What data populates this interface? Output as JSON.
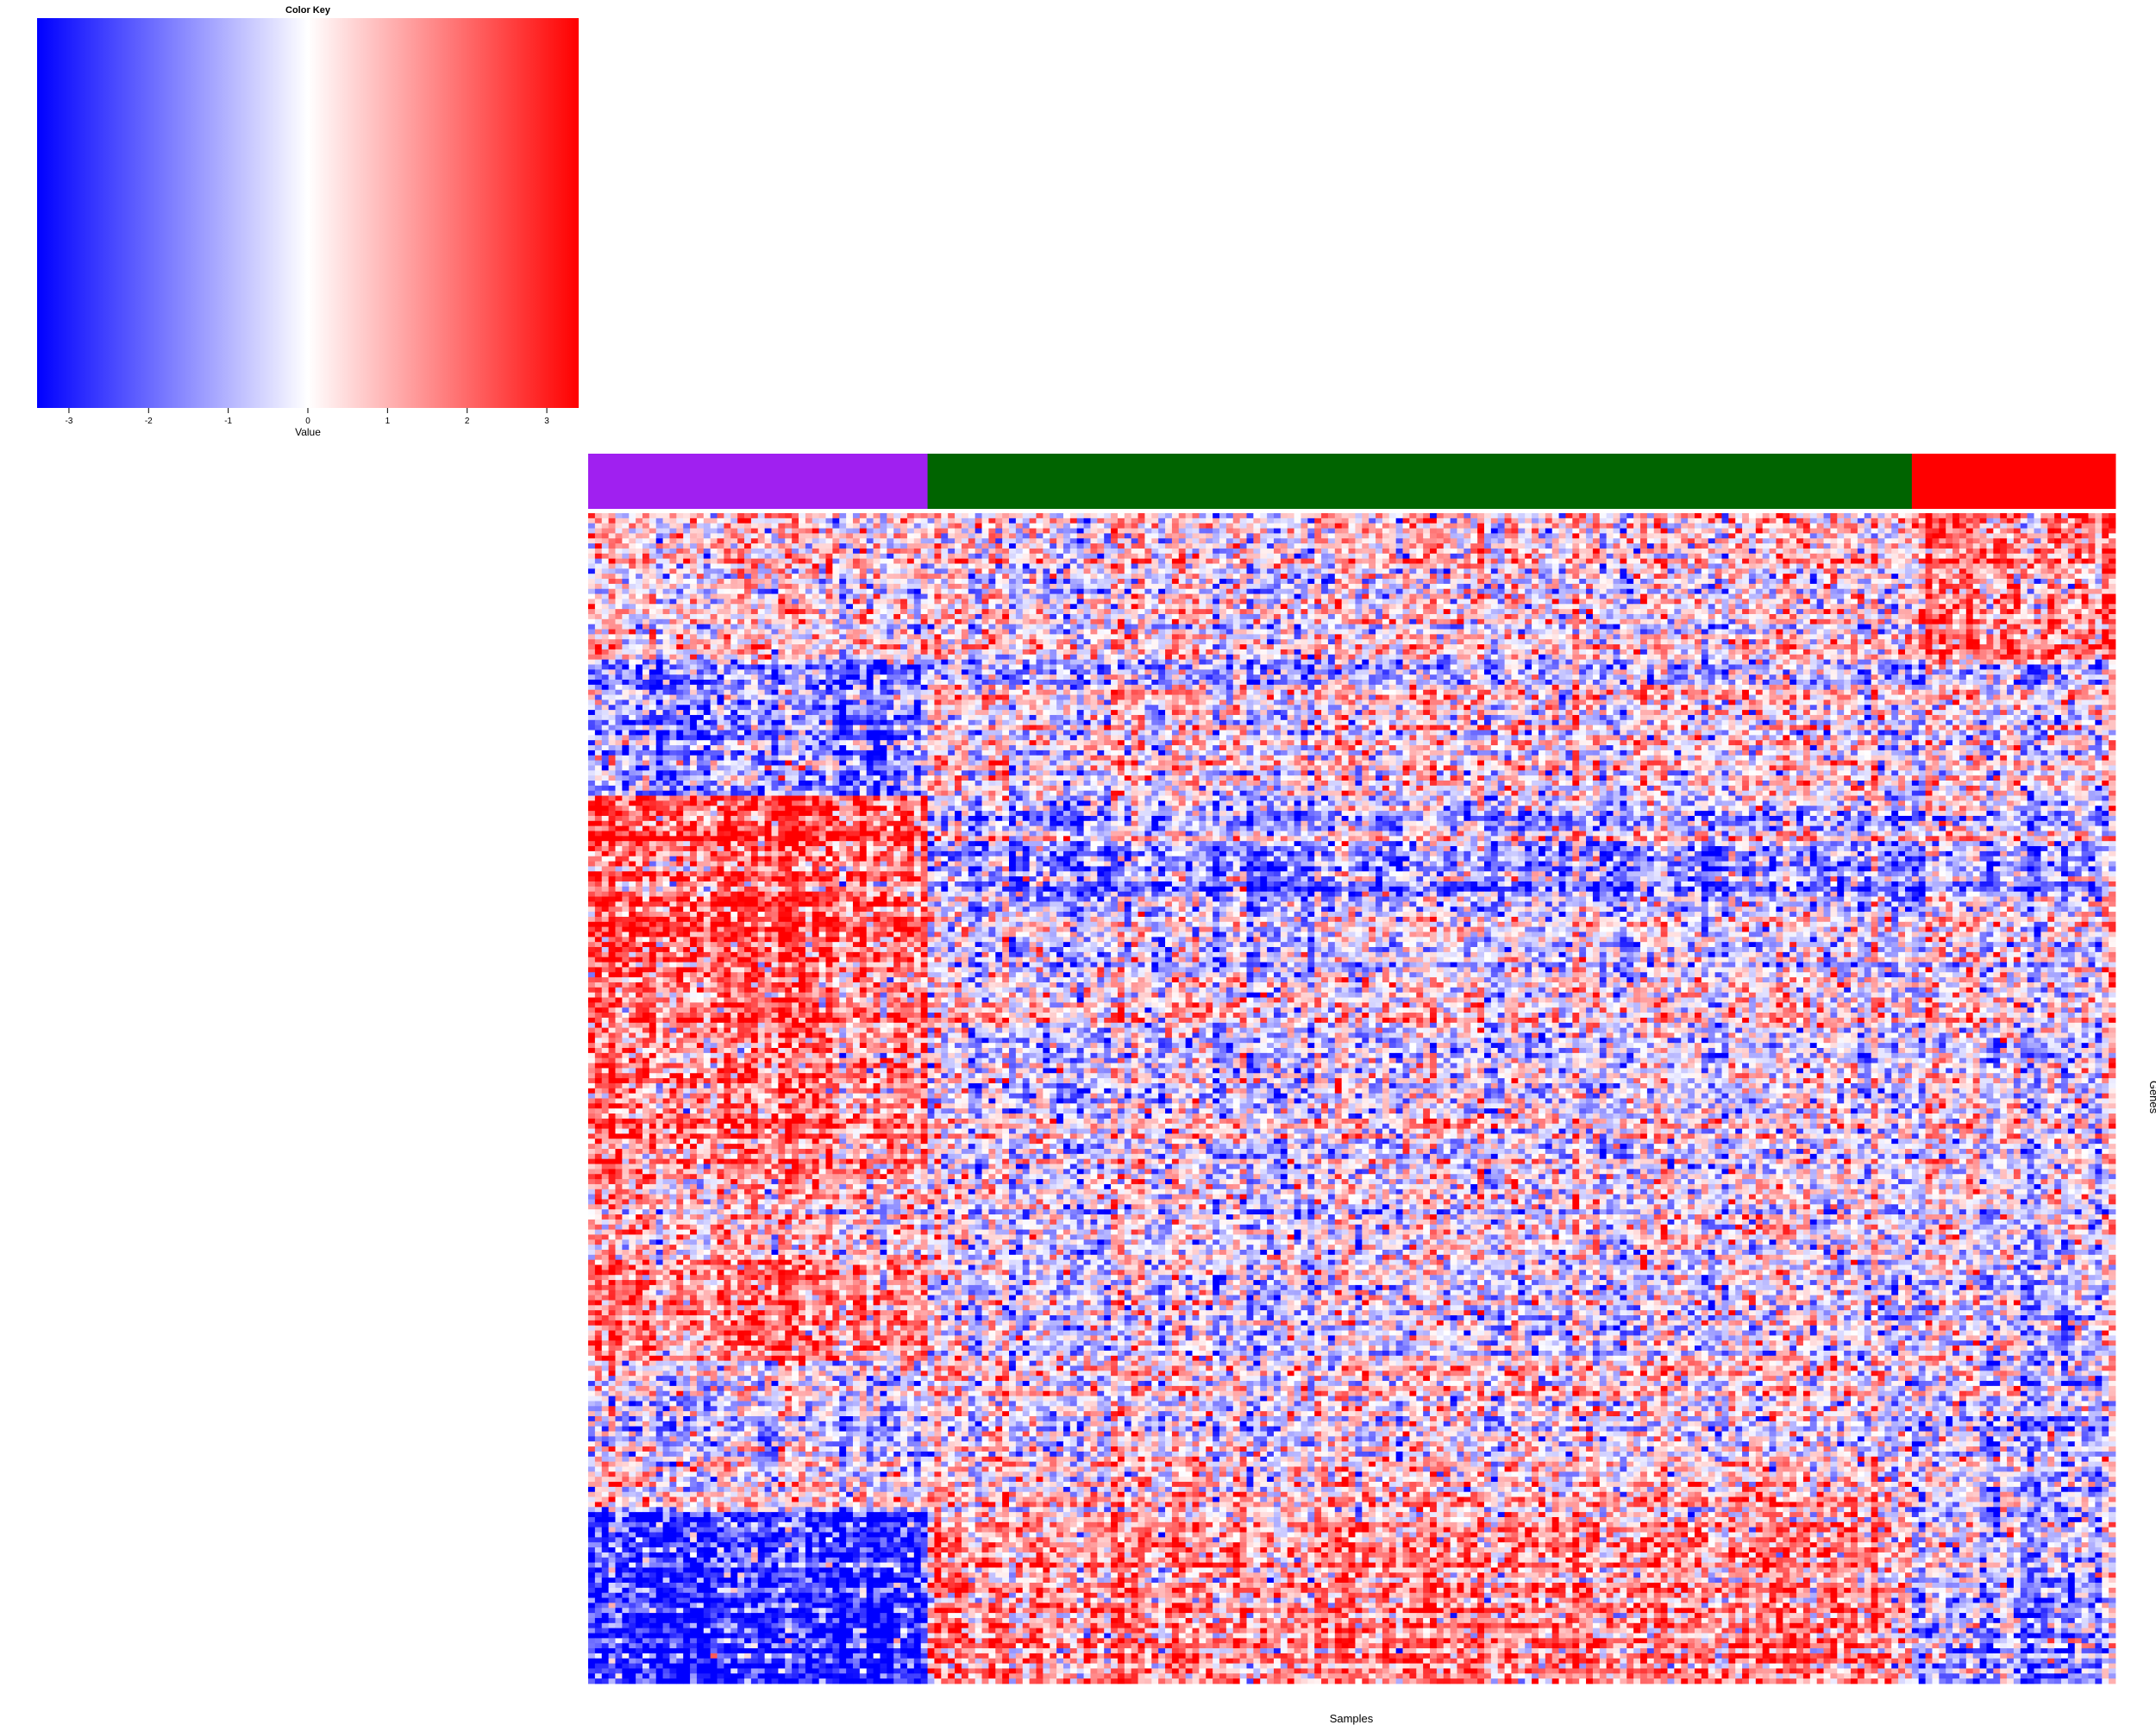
{
  "chart_data": [
    {
      "type": "heatmap",
      "title": "",
      "xlabel": "Samples",
      "ylabel": "Genes",
      "value_range": [
        -3.4,
        3.4
      ],
      "colorscale": [
        "#0000ff",
        "#ffffff",
        "#ff0000"
      ],
      "col_groups": [
        {
          "color": "#a020f0",
          "n_cols": 50
        },
        {
          "color": "#006400",
          "n_cols": 145
        },
        {
          "color": "#ff0000",
          "n_cols": 30
        }
      ],
      "row_blocks": [
        {
          "n_rows": 30,
          "means": [
            0.3,
            0.0,
            1.4
          ]
        },
        {
          "n_rows": 4,
          "means": [
            -1.6,
            -1.0,
            -0.8
          ]
        },
        {
          "n_rows": 22,
          "means": [
            -1.3,
            0.2,
            0.1
          ]
        },
        {
          "n_rows": 22,
          "means": [
            2.4,
            -1.0,
            -0.6
          ]
        },
        {
          "n_rows": 14,
          "means": [
            2.0,
            -0.8,
            -0.4
          ]
        },
        {
          "n_rows": 10,
          "means": [
            1.6,
            -0.1,
            0.0
          ]
        },
        {
          "n_rows": 30,
          "means": [
            1.6,
            -0.4,
            -0.2
          ]
        },
        {
          "n_rows": 16,
          "means": [
            0.6,
            -0.2,
            -0.2
          ]
        },
        {
          "n_rows": 20,
          "means": [
            1.6,
            -0.5,
            -0.6
          ]
        },
        {
          "n_rows": 22,
          "means": [
            -0.3,
            0.1,
            -0.6
          ]
        },
        {
          "n_rows": 8,
          "means": [
            -0.2,
            0.1,
            -1.2
          ]
        },
        {
          "n_rows": 14,
          "means": [
            -2.6,
            1.2,
            -0.4
          ]
        },
        {
          "n_rows": 20,
          "means": [
            -2.8,
            1.5,
            -1.2
          ]
        }
      ]
    },
    {
      "type": "heatmap",
      "title": "Color Key",
      "xlabel": "Value",
      "ylabel": "",
      "colorscale": [
        "#0000ff",
        "#ffffff",
        "#ff0000"
      ],
      "xlim": [
        -3.4,
        3.4
      ],
      "ticks": [
        -3,
        -2,
        -1,
        0,
        1,
        2,
        3
      ],
      "tick_labels": [
        "-3",
        "-2",
        "-1",
        "0",
        "1",
        "2",
        "3"
      ]
    }
  ]
}
